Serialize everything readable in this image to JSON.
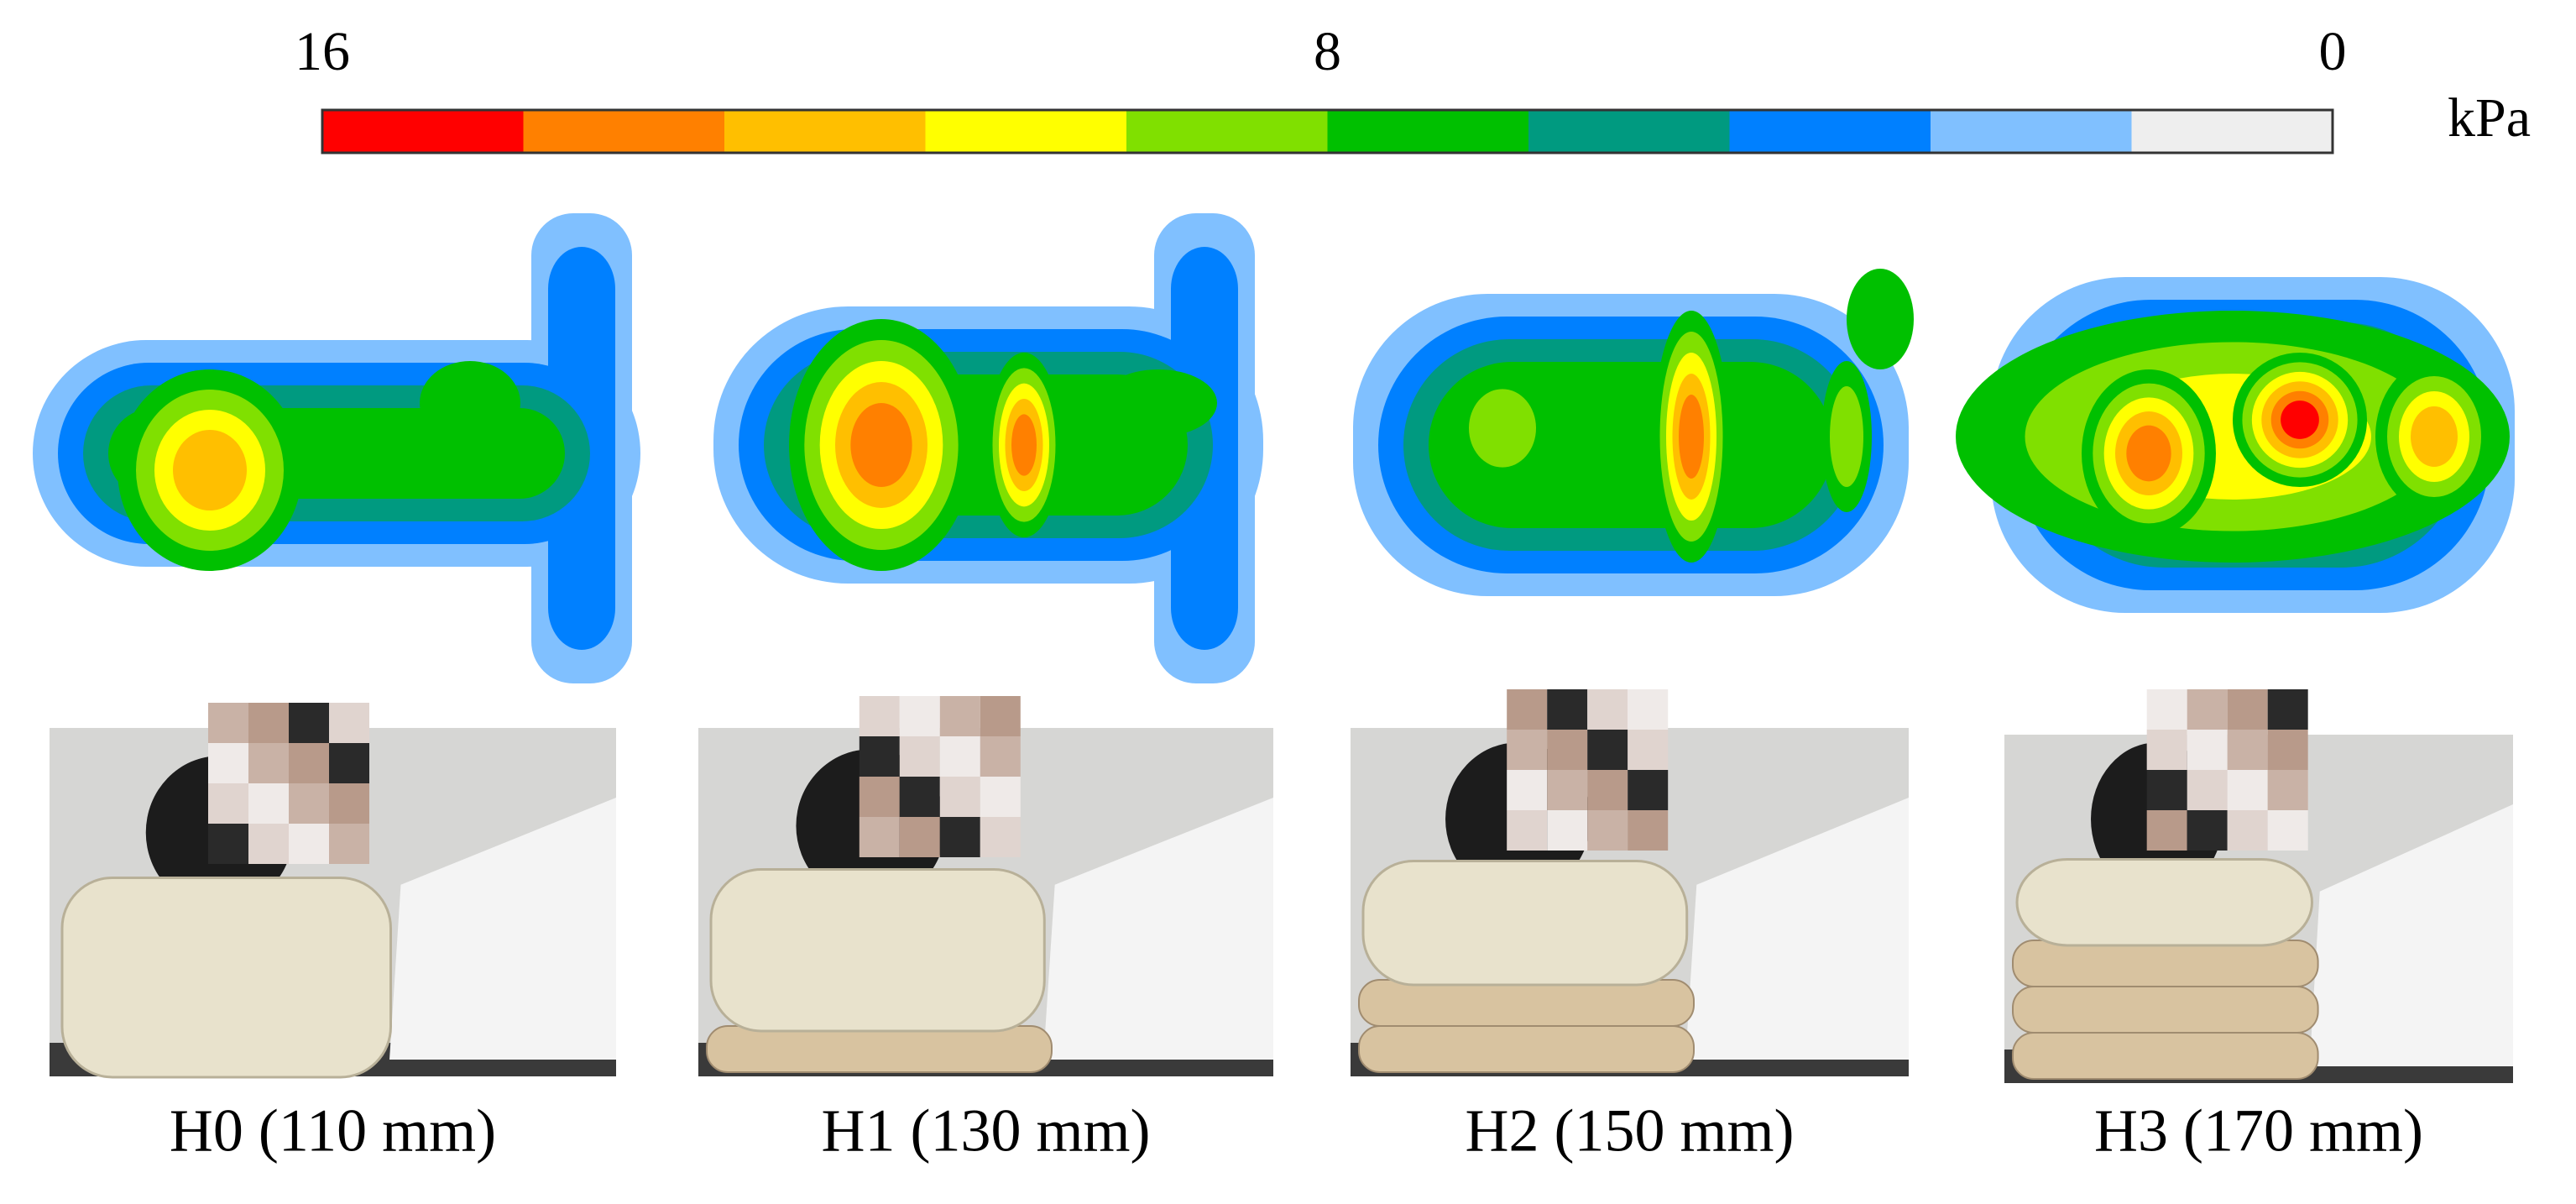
{
  "colorbar": {
    "ticks": [
      16,
      8,
      0
    ],
    "lim": [
      16,
      0
    ],
    "unit": "kPa",
    "colors": [
      "#ff0000",
      "#ff8000",
      "#ffbf00",
      "#ffff00",
      "#80e000",
      "#00c000",
      "#009a80",
      "#0080ff",
      "#80c0ff",
      "#eeeeee"
    ]
  },
  "panels": [
    {
      "label": "H0 (110 mm)"
    },
    {
      "label": "H1 (130 mm)"
    },
    {
      "label": "H2 (150 mm)"
    },
    {
      "label": "H3 (170 mm)"
    }
  ]
}
